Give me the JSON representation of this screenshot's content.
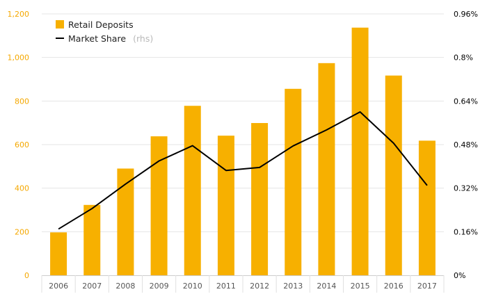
{
  "chart_data": {
    "type": "bar",
    "categories": [
      "2006",
      "2007",
      "2008",
      "2009",
      "2010",
      "2011",
      "2012",
      "2013",
      "2014",
      "2015",
      "2016",
      "2017"
    ],
    "series": [
      {
        "name": "Retail Deposits",
        "type": "bar",
        "axis": "left",
        "color": "#f7b000",
        "values": [
          197,
          323,
          490,
          638,
          778,
          641,
          699,
          856,
          974,
          1137,
          917,
          618
        ]
      },
      {
        "name": "Market Share",
        "name_suffix": "(rhs)",
        "type": "line",
        "axis": "right",
        "color": "#000000",
        "values": [
          0.17,
          0.245,
          0.335,
          0.42,
          0.476,
          0.385,
          0.396,
          0.475,
          0.534,
          0.6,
          0.485,
          0.33
        ]
      }
    ],
    "y_left": {
      "ylim": [
        0,
        1200
      ],
      "ticks": [
        0,
        200,
        400,
        600,
        800,
        1000,
        1200
      ],
      "tick_labels": [
        "0",
        "200",
        "400",
        "600",
        "800",
        "1,000",
        "1,200"
      ],
      "color": "#f5a800"
    },
    "y_right": {
      "ylim": [
        0,
        0.96
      ],
      "ticks": [
        0,
        0.16,
        0.32,
        0.48,
        0.64,
        0.8,
        0.96
      ],
      "tick_labels": [
        "0%",
        "0.16%",
        "0.32%",
        "0.48%",
        "0.64%",
        "0.8%",
        "0.96%"
      ],
      "color": "#000000"
    },
    "grid": true,
    "legend_position": "top-left",
    "title": "",
    "xlabel": "",
    "ylabel": ""
  }
}
